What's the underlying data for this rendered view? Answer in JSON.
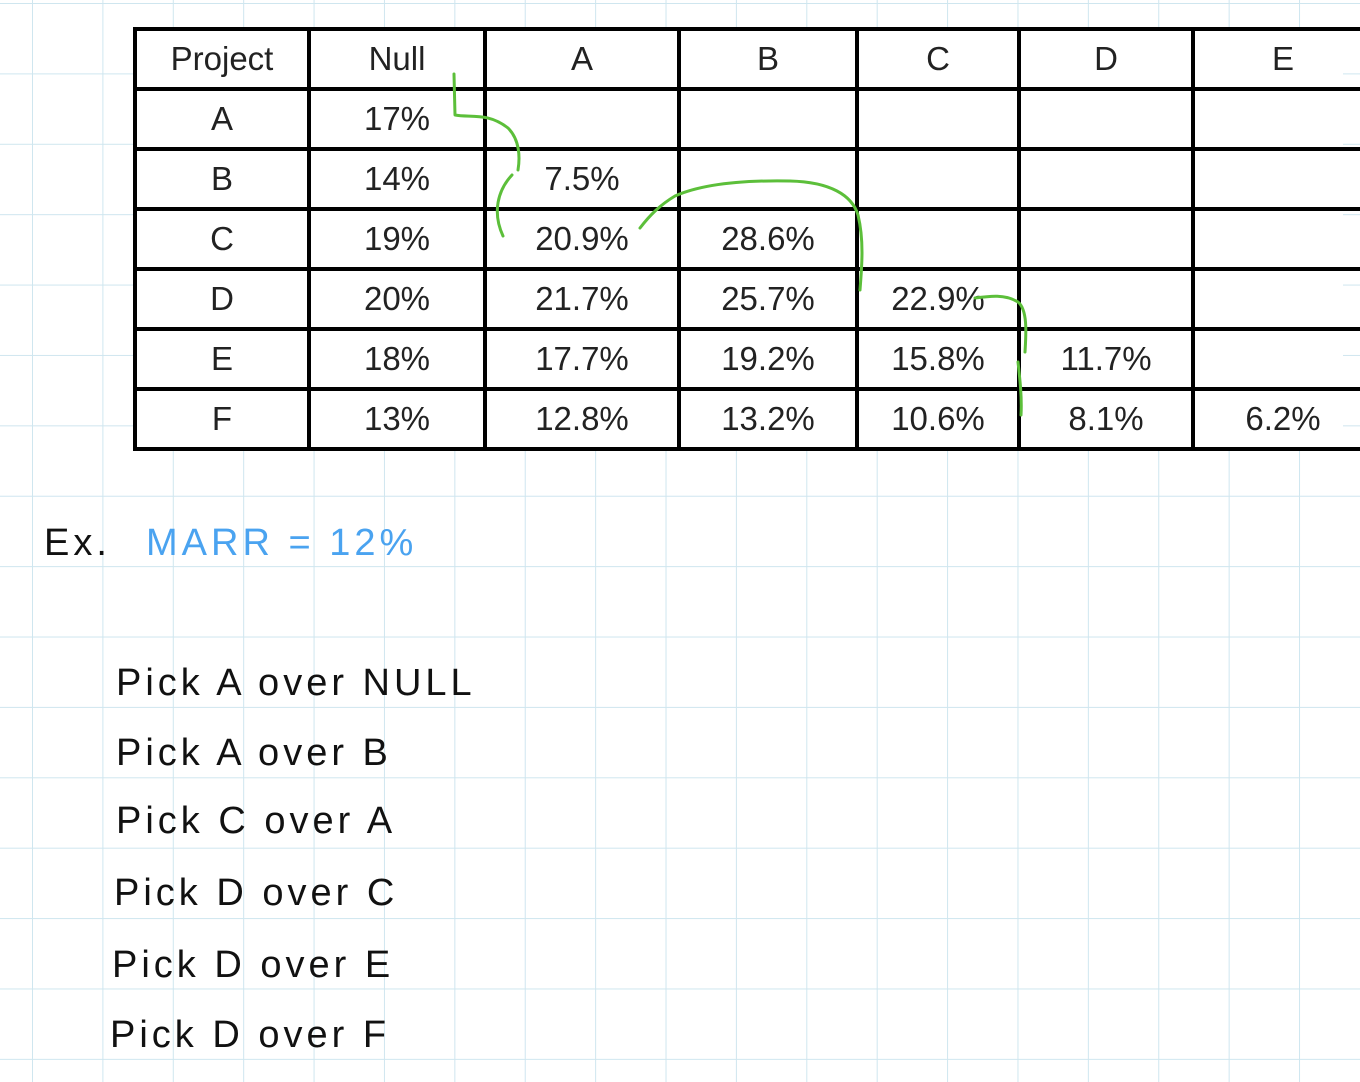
{
  "table": {
    "headers": [
      "Project",
      "Null",
      "A",
      "B",
      "C",
      "D",
      "E"
    ],
    "rows": [
      [
        "A",
        "17%",
        "",
        "",
        "",
        "",
        ""
      ],
      [
        "B",
        "14%",
        "7.5%",
        "",
        "",
        "",
        ""
      ],
      [
        "C",
        "19%",
        "20.9%",
        "28.6%",
        "",
        "",
        ""
      ],
      [
        "D",
        "20%",
        "21.7%",
        "25.7%",
        "22.9%",
        "",
        ""
      ],
      [
        "E",
        "18%",
        "17.7%",
        "19.2%",
        "15.8%",
        "11.7%",
        ""
      ],
      [
        "F",
        "13%",
        "12.8%",
        "13.2%",
        "10.6%",
        "8.1%",
        "6.2%"
      ]
    ]
  },
  "notes": {
    "example_label": "Ex.",
    "marr": "MARR = 12%",
    "steps": [
      "Pick A over NULL",
      "Pick A over B",
      "Pick C over A",
      "Pick D over C",
      "Pick D over E",
      "Pick D over F"
    ]
  },
  "colors": {
    "grid_line": "#cfe6ef",
    "path_stroke": "#5cbf3a",
    "marr_text": "#4aa3f0"
  }
}
